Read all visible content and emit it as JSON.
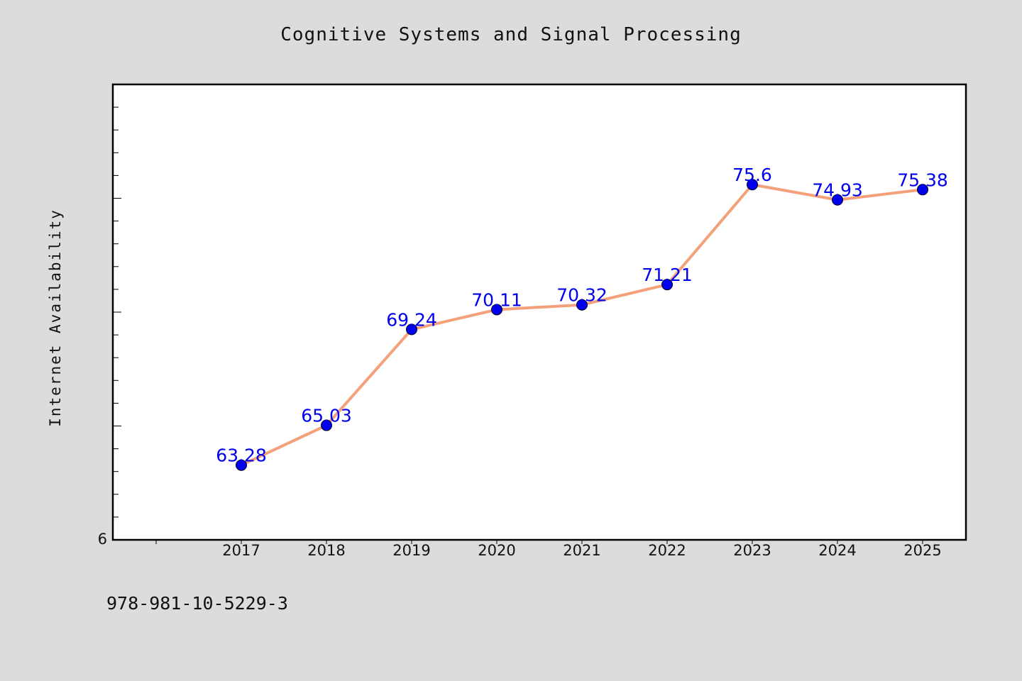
{
  "title": "Cognitive Systems and Signal Processing",
  "footer": "978-981-10-5229-3",
  "chart_data": {
    "type": "line",
    "title": "Cognitive Systems and Signal Processing",
    "xlabel": "",
    "ylabel": "Internet Availability",
    "x": [
      "2017",
      "2018",
      "2019",
      "2020",
      "2021",
      "2022",
      "2023",
      "2024",
      "2025"
    ],
    "series": [
      {
        "values": [
          63.28,
          65.03,
          69.24,
          70.11,
          70.32,
          71.21,
          75.6,
          74.93,
          75.38
        ],
        "labels": [
          "63.28",
          "65.03",
          "69.24",
          "70.11",
          "70.32",
          "71.21",
          "75.6",
          "74.93",
          "75.38"
        ]
      }
    ],
    "y_tick_labels": [
      "6"
    ],
    "ylim": [
      60,
      80
    ],
    "grid": false,
    "legend": "none",
    "colors": {
      "line": "#f4a07a",
      "marker": "#0000ee",
      "label": "#0000ee",
      "plot_background": "#ffffff",
      "page_background": "#dcdcdc"
    }
  }
}
